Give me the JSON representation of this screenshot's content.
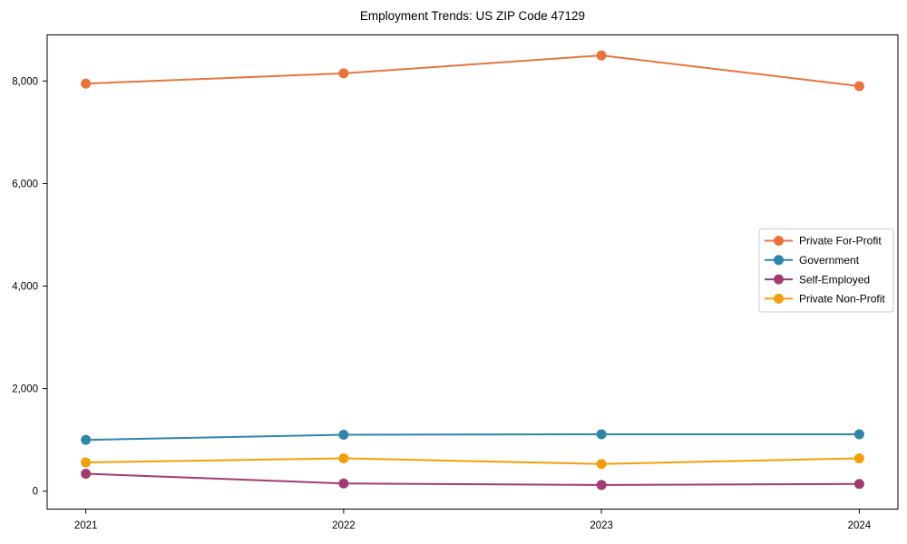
{
  "chart_data": {
    "type": "line",
    "title": "Employment Trends: US ZIP Code 47129",
    "xlabel": "",
    "ylabel": "",
    "x": [
      2021,
      2022,
      2023,
      2024
    ],
    "x_tick_labels": [
      "2021",
      "2022",
      "2023",
      "2024"
    ],
    "y_ticks": [
      0,
      2000,
      4000,
      6000,
      8000
    ],
    "y_tick_labels": [
      "0",
      "2,000",
      "4,000",
      "6,000",
      "8,000"
    ],
    "xlim": [
      2020.85,
      2024.15
    ],
    "ylim": [
      -350,
      8900
    ],
    "grid": false,
    "legend_position": "center-right",
    "series": [
      {
        "name": "Private For-Profit",
        "color": "#E8743B",
        "values": [
          7950,
          8150,
          8500,
          7900
        ]
      },
      {
        "name": "Government",
        "color": "#2E86AB",
        "values": [
          1000,
          1100,
          1110,
          1110
        ]
      },
      {
        "name": "Self-Employed",
        "color": "#A23B72",
        "values": [
          340,
          150,
          120,
          140
        ]
      },
      {
        "name": "Private Non-Profit",
        "color": "#F59E0B",
        "values": [
          560,
          640,
          530,
          640
        ]
      }
    ],
    "style": {
      "background": "#ffffff",
      "spine_color": "#000000",
      "legend_border_color": "#cccccc"
    }
  }
}
